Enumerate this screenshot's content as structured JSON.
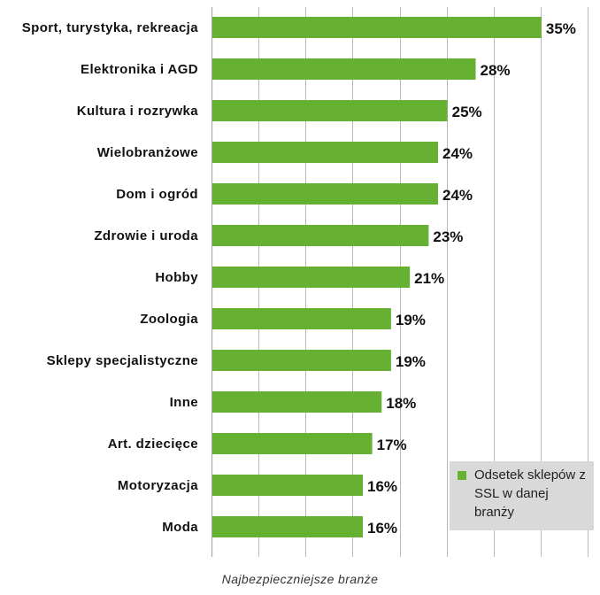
{
  "chart_data": {
    "type": "bar",
    "orientation": "horizontal",
    "categories": [
      "Sport, turystyka, rekreacja",
      "Elektronika i AGD",
      "Kultura i rozrywka",
      "Wielobranżowe",
      "Dom i ogród",
      "Zdrowie i uroda",
      "Hobby",
      "Zoologia",
      "Sklepy specjalistyczne",
      "Inne",
      "Art. dziecięce",
      "Motoryzacja",
      "Moda"
    ],
    "values": [
      35,
      28,
      25,
      24,
      24,
      23,
      21,
      19,
      19,
      18,
      17,
      16,
      16
    ],
    "value_labels": [
      "35%",
      "28%",
      "25%",
      "24%",
      "24%",
      "23%",
      "21%",
      "19%",
      "19%",
      "18%",
      "17%",
      "16%",
      "16%"
    ],
    "series": [
      {
        "name": "Odsetek sklepów z SSL w danej branży",
        "values": [
          35,
          28,
          25,
          24,
          24,
          23,
          21,
          19,
          19,
          18,
          17,
          16,
          16
        ]
      }
    ],
    "xlim": [
      0,
      40
    ],
    "grid": true,
    "legend_position": "bottom-right",
    "title": "",
    "caption": "Najbezpieczniejsze branże"
  },
  "colors": {
    "bar": "#66b032",
    "grid": "#a6a6a6",
    "legend_bg": "#d9d9d9"
  },
  "legend": {
    "label": "Odsetek sklepów z SSL w danej branży"
  },
  "caption": "Najbezpieczniejsze branże"
}
